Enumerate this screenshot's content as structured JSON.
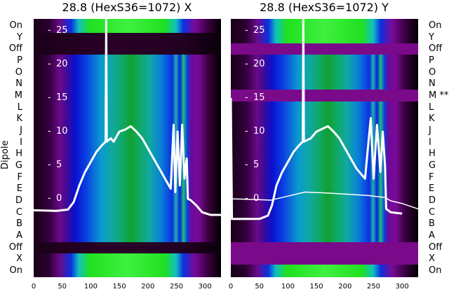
{
  "chart_data": [
    {
      "type": "heatmap",
      "title": "28.8 (HexS36=1072) X",
      "ylabel": "Dipole",
      "row_labels": [
        "On",
        "Y",
        "Off",
        "P",
        "O",
        "N",
        "M",
        "L",
        "K",
        "J",
        "I",
        "H",
        "G",
        "F",
        "E",
        "D",
        "C",
        "B",
        "A",
        "Off",
        "X",
        "On"
      ],
      "xticks": [
        0,
        50,
        100,
        150,
        200,
        250,
        300
      ],
      "xlim": [
        0,
        328
      ],
      "inner_yticks": [
        25,
        20,
        15,
        10,
        5,
        0
      ],
      "inner_ylim": [
        -11.5,
        26.5
      ],
      "series": [
        {
          "name": "thick",
          "values": [
            [
              0,
              -1.7
            ],
            [
              40,
              -1.8
            ],
            [
              60,
              -1.6
            ],
            [
              70,
              -0.5
            ],
            [
              80,
              2
            ],
            [
              90,
              4
            ],
            [
              100,
              5.5
            ],
            [
              110,
              7
            ],
            [
              120,
              8
            ],
            [
              126,
              8.5
            ],
            [
              127,
              27
            ],
            [
              128,
              8.5
            ],
            [
              135,
              9
            ],
            [
              140,
              8.5
            ],
            [
              150,
              10
            ],
            [
              160,
              10.3
            ],
            [
              170,
              10.8
            ],
            [
              180,
              10
            ],
            [
              190,
              9
            ],
            [
              200,
              7.5
            ],
            [
              210,
              6
            ],
            [
              220,
              4.5
            ],
            [
              230,
              3
            ],
            [
              240,
              1.5
            ],
            [
              245,
              11
            ],
            [
              248,
              1
            ],
            [
              252,
              10
            ],
            [
              256,
              2
            ],
            [
              260,
              11
            ],
            [
              264,
              3
            ],
            [
              268,
              6
            ],
            [
              270,
              0
            ],
            [
              275,
              -0.2
            ],
            [
              285,
              -1
            ],
            [
              295,
              -2
            ],
            [
              310,
              -2.4
            ],
            [
              328,
              -2.4
            ]
          ]
        }
      ]
    },
    {
      "type": "heatmap",
      "title": "28.8 (HexS36=1072) Y",
      "row_labels": [
        "On",
        "Y",
        "Off",
        "P",
        "O",
        "N",
        "M **",
        "L",
        "K",
        "J",
        "I",
        "H",
        "G",
        "F",
        "E",
        "D",
        "C",
        "B",
        "A",
        "Off",
        "X",
        "On"
      ],
      "xticks": [
        0,
        50,
        100,
        150,
        200,
        250,
        300
      ],
      "xlim": [
        0,
        328
      ],
      "inner_yticks": [
        25,
        20,
        15,
        10,
        5,
        0
      ],
      "inner_ylim": [
        -11.5,
        26.5
      ],
      "series": [
        {
          "name": "thick",
          "values": [
            [
              0,
              15
            ],
            [
              2,
              -3
            ],
            [
              50,
              -3
            ],
            [
              65,
              -2.5
            ],
            [
              72,
              -1
            ],
            [
              80,
              2
            ],
            [
              90,
              4
            ],
            [
              100,
              5.5
            ],
            [
              110,
              7
            ],
            [
              120,
              8
            ],
            [
              126,
              8.5
            ],
            [
              127,
              27
            ],
            [
              128,
              8.5
            ],
            [
              140,
              9
            ],
            [
              150,
              10
            ],
            [
              160,
              10.4
            ],
            [
              170,
              10.8
            ],
            [
              180,
              10
            ],
            [
              190,
              9
            ],
            [
              200,
              7.5
            ],
            [
              210,
              6
            ],
            [
              220,
              4.5
            ],
            [
              235,
              3
            ],
            [
              245,
              12
            ],
            [
              250,
              3
            ],
            [
              256,
              11
            ],
            [
              262,
              4
            ],
            [
              266,
              10
            ],
            [
              270,
              5
            ],
            [
              272,
              -1.5
            ],
            [
              280,
              -2
            ],
            [
              300,
              -2.2
            ]
          ]
        },
        {
          "name": "thin",
          "values": [
            [
              0,
              0
            ],
            [
              40,
              -0.1
            ],
            [
              70,
              -0.2
            ],
            [
              90,
              0.2
            ],
            [
              110,
              0.6
            ],
            [
              130,
              1
            ],
            [
              160,
              0.9
            ],
            [
              200,
              0.7
            ],
            [
              240,
              0.5
            ],
            [
              270,
              0.2
            ],
            [
              280,
              -0.3
            ],
            [
              300,
              -0.7
            ],
            [
              328,
              -1.5
            ]
          ]
        }
      ]
    }
  ]
}
